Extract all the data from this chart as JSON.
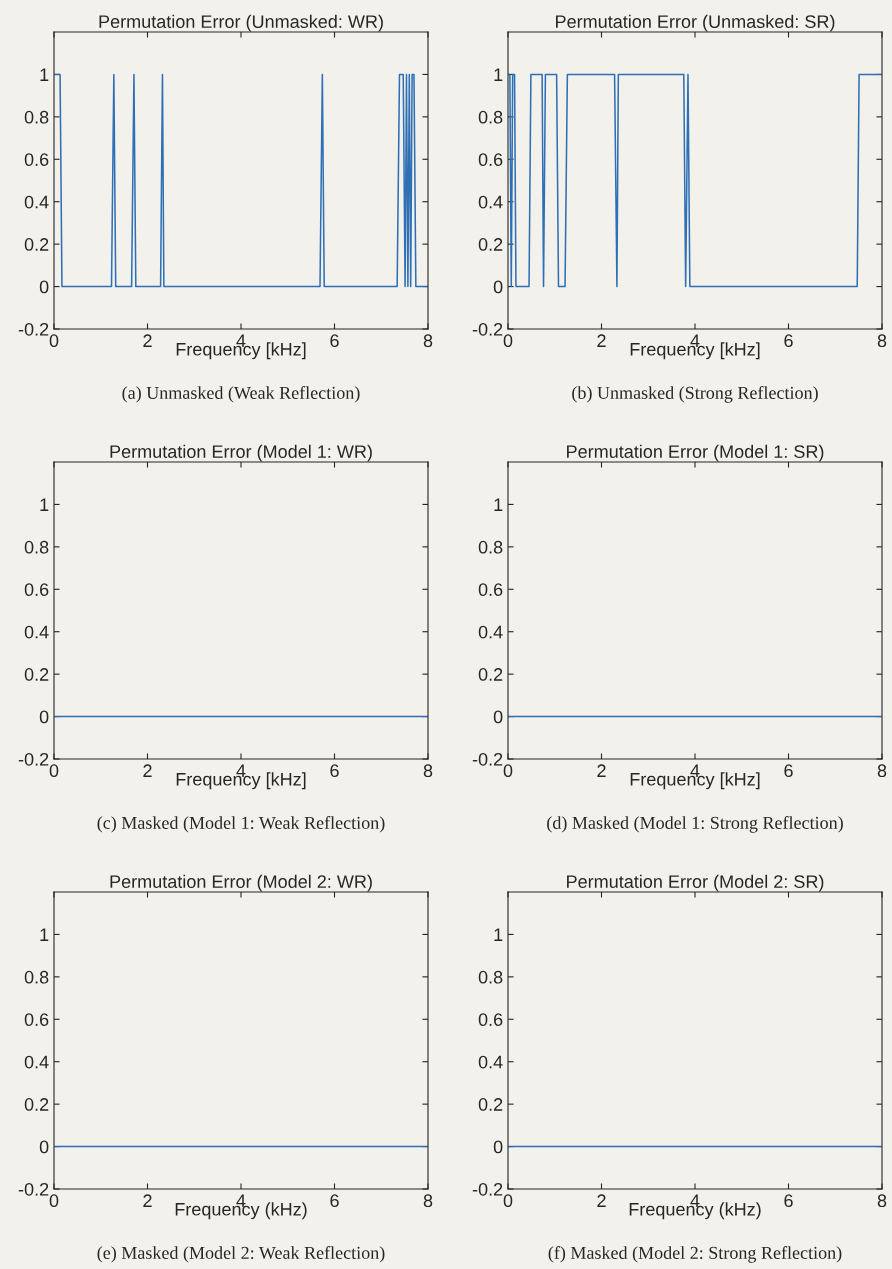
{
  "chart_data": [
    {
      "type": "line",
      "title": "Permutation Error (Unmasked: WR)",
      "xlabel": "Frequency [kHz]",
      "annotations": [
        "(a) Unmasked (Weak Reflection)"
      ],
      "xlim": [
        0,
        8
      ],
      "ylim": [
        -0.2,
        1.2
      ],
      "xticks": [
        0,
        2,
        4,
        6,
        8
      ],
      "yticks": [
        -0.2,
        0,
        0.2,
        0.4,
        0.6,
        0.8,
        1
      ],
      "grid": false,
      "legend": false,
      "series": [
        {
          "color": "#2f6fb5",
          "x": [
            0,
            0.13,
            0.17,
            1.23,
            1.28,
            1.32,
            1.66,
            1.71,
            1.75,
            2.28,
            2.32,
            2.35,
            5.69,
            5.74,
            5.78,
            7.34,
            7.39,
            7.47,
            7.51,
            7.54,
            7.57,
            7.6,
            7.63,
            7.66,
            7.7,
            7.74,
            8
          ],
          "values": [
            1,
            1,
            0,
            0,
            1,
            0,
            0,
            1,
            0,
            0,
            1,
            0,
            0,
            1,
            0,
            0,
            1,
            1,
            0,
            1,
            0,
            1,
            0,
            1,
            1,
            0,
            0
          ]
        }
      ]
    },
    {
      "type": "line",
      "title": "Permutation Error (Unmasked: SR)",
      "xlabel": "Frequency [kHz]",
      "annotations": [
        "(b) Unmasked (Strong Reflection)"
      ],
      "xlim": [
        0,
        8
      ],
      "ylim": [
        -0.2,
        1.2
      ],
      "xticks": [
        0,
        2,
        4,
        6,
        8
      ],
      "yticks": [
        -0.2,
        0,
        0.2,
        0.4,
        0.6,
        0.8,
        1
      ],
      "grid": false,
      "legend": false,
      "series": [
        {
          "color": "#2f6fb5",
          "x": [
            0,
            0.04,
            0.07,
            0.1,
            0.14,
            0.17,
            0.45,
            0.49,
            0.73,
            0.76,
            0.8,
            1.04,
            1.08,
            1.22,
            1.27,
            2.28,
            2.33,
            2.36,
            3.76,
            3.8,
            3.85,
            3.89,
            7.47,
            7.51,
            8
          ],
          "values": [
            1,
            1,
            0,
            1,
            1,
            0,
            0,
            1,
            1,
            0,
            1,
            1,
            0,
            0,
            1,
            1,
            0,
            1,
            1,
            0,
            1,
            0,
            0,
            1,
            1
          ]
        }
      ]
    },
    {
      "type": "line",
      "title": "Permutation Error (Model 1: WR)",
      "xlabel": "Frequency [kHz]",
      "annotations": [
        "(c) Masked (Model 1: Weak Reflection)"
      ],
      "xlim": [
        0,
        8
      ],
      "ylim": [
        -0.2,
        1.2
      ],
      "xticks": [
        0,
        2,
        4,
        6,
        8
      ],
      "yticks": [
        -0.2,
        0,
        0.2,
        0.4,
        0.6,
        0.8,
        1
      ],
      "grid": false,
      "legend": false,
      "series": [
        {
          "color": "#2f6fb5",
          "x": [
            0,
            8
          ],
          "values": [
            0,
            0
          ]
        }
      ]
    },
    {
      "type": "line",
      "title": "Permutation Error (Model 1: SR)",
      "xlabel": "Frequency [kHz]",
      "annotations": [
        "(d) Masked (Model 1: Strong Reflection)"
      ],
      "xlim": [
        0,
        8
      ],
      "ylim": [
        -0.2,
        1.2
      ],
      "xticks": [
        0,
        2,
        4,
        6,
        8
      ],
      "yticks": [
        -0.2,
        0,
        0.2,
        0.4,
        0.6,
        0.8,
        1
      ],
      "grid": false,
      "legend": false,
      "series": [
        {
          "color": "#2f6fb5",
          "x": [
            0,
            8
          ],
          "values": [
            0,
            0
          ]
        }
      ]
    },
    {
      "type": "line",
      "title": "Permutation Error (Model 2: WR)",
      "xlabel": "Frequency (kHz)",
      "annotations": [
        "(e) Masked (Model 2: Weak Reflection)"
      ],
      "xlim": [
        0,
        8
      ],
      "ylim": [
        -0.2,
        1.2
      ],
      "xticks": [
        0,
        2,
        4,
        6,
        8
      ],
      "yticks": [
        -0.2,
        0,
        0.2,
        0.4,
        0.6,
        0.8,
        1
      ],
      "grid": false,
      "legend": false,
      "series": [
        {
          "color": "#2f6fb5",
          "x": [
            0,
            8
          ],
          "values": [
            0,
            0
          ]
        }
      ]
    },
    {
      "type": "line",
      "title": "Permutation Error (Model 2: SR)",
      "xlabel": "Frequency (kHz)",
      "annotations": [
        "(f) Masked (Model 2: Strong Reflection)"
      ],
      "xlim": [
        0,
        8
      ],
      "ylim": [
        -0.2,
        1.2
      ],
      "xticks": [
        0,
        2,
        4,
        6,
        8
      ],
      "yticks": [
        -0.2,
        0,
        0.2,
        0.4,
        0.6,
        0.8,
        1
      ],
      "grid": false,
      "legend": false,
      "series": [
        {
          "color": "#2f6fb5",
          "x": [
            0,
            8
          ],
          "values": [
            0,
            0
          ]
        }
      ]
    }
  ]
}
